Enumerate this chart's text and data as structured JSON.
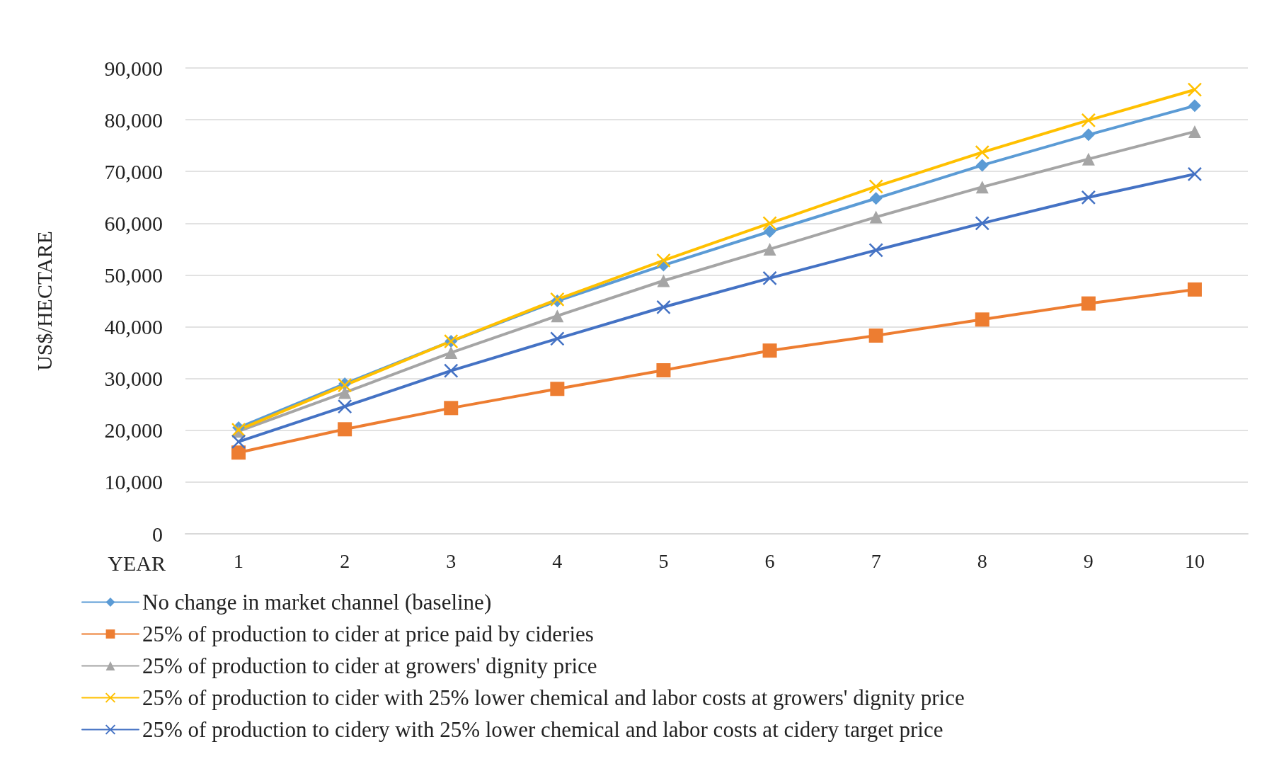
{
  "chart_data": {
    "type": "line",
    "xlabel": "YEAR",
    "ylabel": "US$/HECTARE",
    "categories": [
      "1",
      "2",
      "3",
      "4",
      "5",
      "6",
      "7",
      "8",
      "9",
      "10"
    ],
    "ylim": [
      0,
      90000
    ],
    "yticks": [
      0,
      {
        "value": 10000,
        "label": "10,000"
      },
      {
        "value": 20000,
        "label": "20,000"
      },
      {
        "value": 30000,
        "label": "30,000"
      },
      {
        "value": 40000,
        "label": "40,000"
      },
      {
        "value": 50000,
        "label": "50,000"
      },
      {
        "value": 60000,
        "label": "60,000"
      },
      {
        "value": 70000,
        "label": "70,000"
      },
      {
        "value": 80000,
        "label": "80,000"
      },
      {
        "value": 90000,
        "label": "90,000"
      }
    ],
    "grid": "y",
    "legend": "bottom",
    "line_style": "solid",
    "series": [
      {
        "name": "No change in market channel (baseline)",
        "color": "#5b9bd5",
        "marker": "diamond",
        "values": [
          20500,
          29000,
          37200,
          45000,
          51900,
          58400,
          64800,
          71200,
          77100,
          82700
        ]
      },
      {
        "name": "25% of production to cider at price paid by cideries",
        "color": "#ed7d31",
        "marker": "square",
        "values": [
          15700,
          20200,
          24300,
          28000,
          31600,
          35400,
          38300,
          41400,
          44500,
          47200
        ]
      },
      {
        "name": "25% of production to cider at growers' dignity price",
        "color": "#a5a5a5",
        "marker": "triangle",
        "values": [
          19800,
          27300,
          35000,
          42100,
          48900,
          55000,
          61200,
          67000,
          72400,
          77700
        ]
      },
      {
        "name": "25% of production to cider with 25% lower chemical and labor costs at growers' dignity price",
        "color": "#ffc000",
        "marker": "cross",
        "values": [
          20100,
          28700,
          37200,
          45300,
          52800,
          60000,
          67100,
          73700,
          79900,
          85800
        ]
      },
      {
        "name": "25% of production to cidery with 25% lower chemical and labor costs at cidery target price",
        "color": "#4472c4",
        "marker": "cross",
        "values": [
          17800,
          24600,
          31500,
          37700,
          43800,
          49400,
          54800,
          60000,
          65000,
          69500
        ]
      }
    ]
  }
}
